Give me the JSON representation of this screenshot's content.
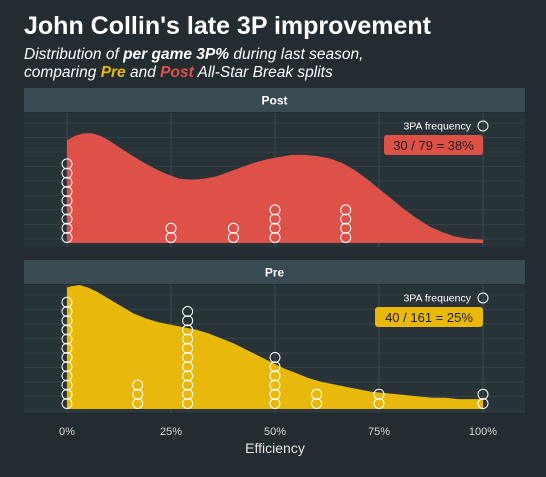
{
  "title": "John Collin's late 3P improvement",
  "subtitle": {
    "line1_prefix": "Distribution of ",
    "line1_bold": "per game 3P%",
    "line1_suffix": " during last season,",
    "line2_prefix": "comparing ",
    "pre_word": "Pre",
    "line2_mid": " and ",
    "post_word": "Post",
    "line2_suffix": " All-Star Break splits"
  },
  "colors": {
    "background": "#222c31",
    "panel": "#283338",
    "strip": "#3a4a52",
    "grid": "#3f4e55",
    "pre": "#e8b90a",
    "post": "#de5149",
    "text": "#ffffff",
    "axis_text": "#d8d8d8"
  },
  "chart_data": {
    "type": "area",
    "xlabel": "Efficiency",
    "xlim": [
      0,
      1
    ],
    "x_ticks": [
      0,
      0.25,
      0.5,
      0.75,
      1
    ],
    "x_tick_labels": [
      "0%",
      "25%",
      "50%",
      "75%",
      "100%"
    ],
    "legend_label": "3PA frequency",
    "legend_placement": "top-right",
    "grid": true,
    "panels": [
      {
        "name": "Post",
        "fill": "#de5149",
        "annotation": "30 / 79 = 38%",
        "density": {
          "x": [
            0,
            0.02,
            0.04,
            0.06,
            0.08,
            0.1,
            0.12,
            0.15,
            0.18,
            0.21,
            0.24,
            0.27,
            0.3,
            0.33,
            0.36,
            0.39,
            0.42,
            0.45,
            0.48,
            0.51,
            0.54,
            0.57,
            0.6,
            0.63,
            0.66,
            0.69,
            0.72,
            0.75,
            0.78,
            0.81,
            0.84,
            0.87,
            0.9,
            0.93,
            0.96,
            1.0
          ],
          "y": [
            0.91,
            0.95,
            0.97,
            0.97,
            0.95,
            0.91,
            0.86,
            0.79,
            0.72,
            0.66,
            0.61,
            0.57,
            0.56,
            0.57,
            0.59,
            0.63,
            0.67,
            0.71,
            0.74,
            0.76,
            0.78,
            0.78,
            0.77,
            0.75,
            0.71,
            0.65,
            0.57,
            0.48,
            0.39,
            0.3,
            0.22,
            0.15,
            0.1,
            0.06,
            0.04,
            0.03
          ]
        },
        "dots": [
          {
            "x": 0.0,
            "count": 9
          },
          {
            "x": 0.25,
            "count": 2
          },
          {
            "x": 0.4,
            "count": 2
          },
          {
            "x": 0.5,
            "count": 4
          },
          {
            "x": 0.67,
            "count": 4
          }
        ]
      },
      {
        "name": "Pre",
        "fill": "#e8b90a",
        "annotation": "40 / 161 = 25%",
        "density": {
          "x": [
            0,
            0.01,
            0.03,
            0.05,
            0.07,
            0.1,
            0.13,
            0.16,
            0.19,
            0.22,
            0.25,
            0.28,
            0.31,
            0.34,
            0.37,
            0.4,
            0.43,
            0.46,
            0.49,
            0.52,
            0.55,
            0.58,
            0.61,
            0.64,
            0.67,
            0.7,
            0.73,
            0.76,
            0.79,
            0.82,
            0.85,
            0.88,
            0.91,
            0.94,
            0.97,
            1.0
          ],
          "y": [
            0.98,
            0.99,
            1.0,
            0.98,
            0.95,
            0.89,
            0.83,
            0.77,
            0.73,
            0.7,
            0.68,
            0.66,
            0.64,
            0.61,
            0.57,
            0.53,
            0.48,
            0.43,
            0.38,
            0.33,
            0.29,
            0.25,
            0.22,
            0.2,
            0.18,
            0.16,
            0.14,
            0.13,
            0.12,
            0.11,
            0.1,
            0.09,
            0.09,
            0.08,
            0.08,
            0.08
          ]
        },
        "dots": [
          {
            "x": 0.0,
            "count": 12
          },
          {
            "x": 0.17,
            "count": 3
          },
          {
            "x": 0.29,
            "count": 11
          },
          {
            "x": 0.5,
            "count": 6
          },
          {
            "x": 0.6,
            "count": 2
          },
          {
            "x": 0.75,
            "count": 2
          },
          {
            "x": 1.0,
            "count": 2
          }
        ]
      }
    ]
  }
}
